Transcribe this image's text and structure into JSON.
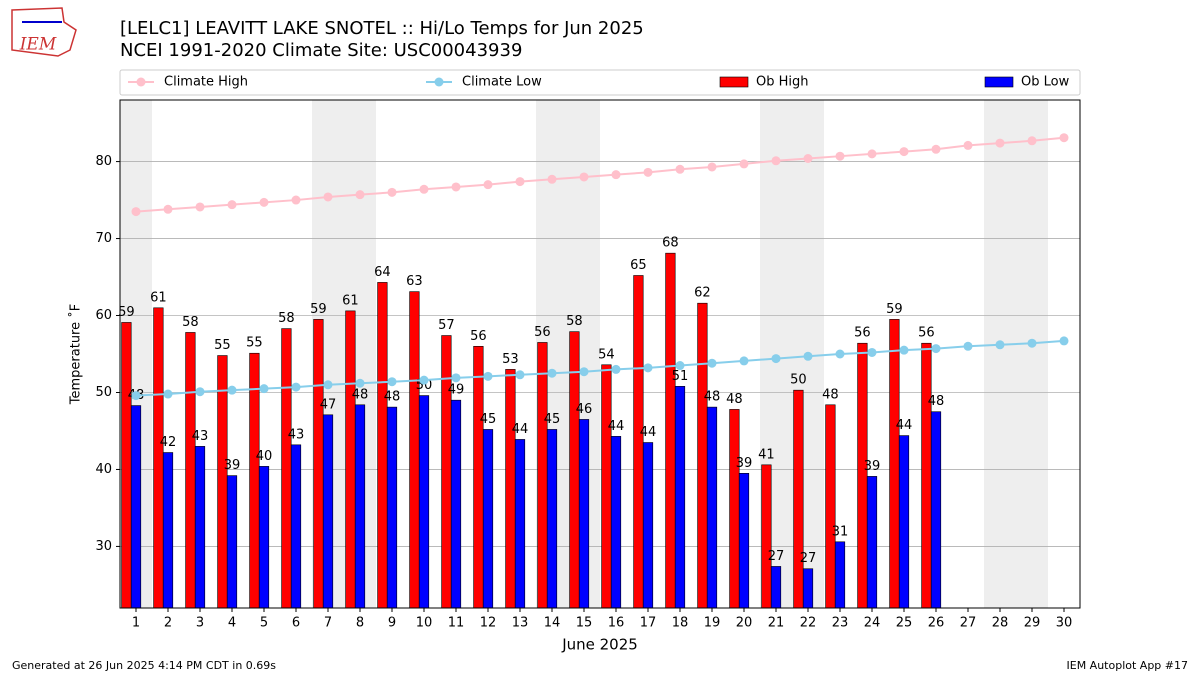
{
  "chart_data": {
    "type": "bar",
    "title": "[LELC1] LEAVITT LAKE SNOTEL :: Hi/Lo Temps for Jun 2025",
    "subtitle": "NCEI 1991-2020 Climate Site: USC00043939",
    "ylabel": "Temperature ˚F",
    "xlabel": "June 2025",
    "footer_left": "Generated at 26 Jun 2025 4:14 PM CDT in 0.69s",
    "footer_right": "IEM Autoplot App #17",
    "logo_text": "IEM",
    "x": [
      1,
      2,
      3,
      4,
      5,
      6,
      7,
      8,
      9,
      10,
      11,
      12,
      13,
      14,
      15,
      16,
      17,
      18,
      19,
      20,
      21,
      22,
      23,
      24,
      25,
      26,
      27,
      28,
      29,
      30
    ],
    "xlim": [
      0.5,
      30.5
    ],
    "xticks": [
      1,
      2,
      3,
      4,
      5,
      6,
      7,
      8,
      9,
      10,
      11,
      12,
      13,
      14,
      15,
      16,
      17,
      18,
      19,
      20,
      21,
      22,
      23,
      24,
      25,
      26,
      27,
      28,
      29,
      30
    ],
    "ylim": [
      22,
      88
    ],
    "yticks": [
      30,
      40,
      50,
      60,
      70,
      80
    ],
    "grid": true,
    "weekend_shading": [
      1,
      7,
      8,
      14,
      15,
      21,
      22,
      28,
      29
    ],
    "series": [
      {
        "name": "Climate High",
        "type": "line",
        "color": "#ffc0cb",
        "values": [
          73.5,
          73.8,
          74.1,
          74.4,
          74.7,
          75.0,
          75.4,
          75.7,
          76.0,
          76.4,
          76.7,
          77.0,
          77.4,
          77.7,
          78.0,
          78.3,
          78.6,
          79.0,
          79.3,
          79.7,
          80.1,
          80.4,
          80.7,
          81.0,
          81.3,
          81.6,
          82.1,
          82.4,
          82.7,
          83.1
        ]
      },
      {
        "name": "Climate Low",
        "type": "line",
        "color": "#87ceeb",
        "values": [
          49.6,
          49.8,
          50.1,
          50.3,
          50.5,
          50.7,
          51.0,
          51.2,
          51.4,
          51.6,
          51.9,
          52.1,
          52.3,
          52.5,
          52.7,
          53.0,
          53.2,
          53.5,
          53.8,
          54.1,
          54.4,
          54.7,
          55.0,
          55.2,
          55.5,
          55.7,
          56.0,
          56.2,
          56.4,
          56.7
        ]
      },
      {
        "name": "Ob High",
        "type": "bar",
        "color": "#ff0000",
        "values": [
          59.1,
          61.0,
          57.8,
          54.8,
          55.1,
          58.3,
          59.5,
          60.6,
          64.3,
          63.1,
          57.4,
          56.0,
          53.0,
          56.5,
          57.9,
          53.6,
          65.2,
          68.1,
          61.6,
          47.8,
          40.6,
          50.3,
          48.4,
          56.4,
          59.5,
          56.4,
          null,
          null,
          null,
          null
        ],
        "value_labels": [
          "59",
          "61",
          "58",
          "55",
          "55",
          "58",
          "59",
          "61",
          "64",
          "63",
          "57",
          "56",
          "53",
          "56",
          "58",
          "54",
          "65",
          "68",
          "62",
          "48",
          "41",
          "50",
          "48",
          "56",
          "59",
          "56",
          null,
          null,
          null,
          null
        ]
      },
      {
        "name": "Ob Low",
        "type": "bar",
        "color": "#0000ff",
        "values": [
          48.3,
          42.2,
          43.0,
          39.2,
          40.4,
          43.2,
          47.1,
          48.4,
          48.1,
          49.6,
          49.0,
          45.2,
          43.9,
          45.2,
          46.5,
          44.3,
          43.5,
          50.8,
          48.1,
          39.5,
          27.4,
          27.1,
          30.6,
          39.1,
          44.4,
          47.5,
          null,
          null,
          null,
          null
        ],
        "value_labels": [
          "48",
          "42",
          "43",
          "39",
          "40",
          "43",
          "47",
          "48",
          "48",
          "50",
          "49",
          "45",
          "44",
          "45",
          "46",
          "44",
          "44",
          "51",
          "48",
          "39",
          "27",
          "27",
          "31",
          "39",
          "44",
          "48",
          null,
          null,
          null,
          null
        ]
      }
    ]
  }
}
